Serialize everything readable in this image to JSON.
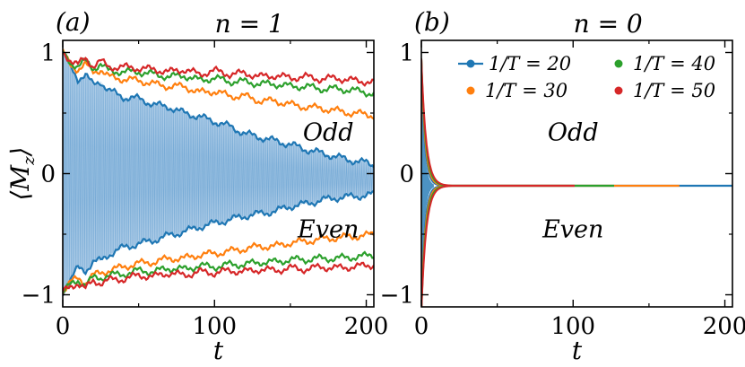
{
  "chart_data": [
    {
      "type": "line",
      "panel_tag": "(a)",
      "title": "n = 1",
      "xlabel": "t",
      "ylabel": "⟨M_z⟩",
      "ylabel_main": "⟨M",
      "ylabel_sub": "z",
      "ylabel_close": "⟩",
      "xlim": [
        0,
        205
      ],
      "ylim": [
        -1.1,
        1.1
      ],
      "xticks": [
        0,
        100,
        200
      ],
      "yticks": [
        1,
        0,
        -1
      ],
      "xtick_labels": [
        "0",
        "100",
        "200"
      ],
      "ytick_labels": [
        "1",
        "0",
        "−1"
      ],
      "annotations": [
        {
          "text": "Odd",
          "x": 175,
          "y": 0.35
        },
        {
          "text": "Even",
          "x": 175,
          "y": -0.45
        }
      ],
      "series": [
        {
          "name": "1/T = 20",
          "color": "#1f77b4",
          "style": "oscillating-envelope",
          "x": [
            0,
            5,
            10,
            15,
            20,
            25,
            30,
            40,
            50,
            60,
            70,
            80,
            90,
            100,
            110,
            120,
            130,
            140,
            150,
            160,
            170,
            180,
            190,
            200,
            205
          ],
          "upper": [
            1.0,
            0.88,
            0.78,
            0.82,
            0.73,
            0.76,
            0.69,
            0.63,
            0.62,
            0.57,
            0.55,
            0.5,
            0.47,
            0.43,
            0.39,
            0.33,
            0.3,
            0.27,
            0.24,
            0.2,
            0.17,
            0.14,
            0.11,
            0.09,
            0.07
          ],
          "lower": [
            -0.98,
            -0.88,
            -0.78,
            -0.8,
            -0.73,
            -0.72,
            -0.67,
            -0.61,
            -0.58,
            -0.55,
            -0.51,
            -0.48,
            -0.44,
            -0.41,
            -0.38,
            -0.35,
            -0.33,
            -0.31,
            -0.27,
            -0.25,
            -0.22,
            -0.2,
            -0.19,
            -0.18,
            -0.17
          ]
        },
        {
          "name": "1/T = 30",
          "color": "#ff7f0e",
          "x": [
            0,
            5,
            10,
            15,
            20,
            25,
            30,
            40,
            50,
            60,
            70,
            80,
            90,
            100,
            110,
            120,
            130,
            140,
            150,
            160,
            170,
            180,
            190,
            200,
            205
          ],
          "upper": [
            1.0,
            0.9,
            0.86,
            0.9,
            0.84,
            0.86,
            0.8,
            0.78,
            0.77,
            0.74,
            0.72,
            0.72,
            0.67,
            0.68,
            0.64,
            0.64,
            0.6,
            0.6,
            0.57,
            0.55,
            0.54,
            0.52,
            0.5,
            0.49,
            0.48
          ],
          "lower": [
            -0.98,
            -0.9,
            -0.86,
            -0.9,
            -0.84,
            -0.82,
            -0.8,
            -0.77,
            -0.74,
            -0.73,
            -0.7,
            -0.7,
            -0.67,
            -0.66,
            -0.64,
            -0.62,
            -0.6,
            -0.6,
            -0.57,
            -0.56,
            -0.54,
            -0.53,
            -0.52,
            -0.51,
            -0.5
          ]
        },
        {
          "name": "1/T = 40",
          "color": "#2ca02c",
          "x": [
            0,
            5,
            10,
            15,
            20,
            25,
            30,
            40,
            50,
            60,
            70,
            80,
            90,
            100,
            110,
            120,
            130,
            140,
            150,
            160,
            170,
            180,
            190,
            200,
            205
          ],
          "upper": [
            1.0,
            0.92,
            0.88,
            0.93,
            0.87,
            0.9,
            0.85,
            0.84,
            0.84,
            0.82,
            0.8,
            0.81,
            0.77,
            0.79,
            0.76,
            0.76,
            0.74,
            0.74,
            0.72,
            0.72,
            0.7,
            0.7,
            0.69,
            0.67,
            0.66
          ],
          "lower": [
            -0.98,
            -0.92,
            -0.88,
            -0.92,
            -0.86,
            -0.86,
            -0.84,
            -0.83,
            -0.8,
            -0.81,
            -0.78,
            -0.79,
            -0.76,
            -0.77,
            -0.75,
            -0.75,
            -0.73,
            -0.73,
            -0.71,
            -0.71,
            -0.7,
            -0.7,
            -0.69,
            -0.68,
            -0.67
          ]
        },
        {
          "name": "1/T = 50",
          "color": "#d62728",
          "x": [
            0,
            5,
            10,
            15,
            20,
            25,
            30,
            40,
            50,
            60,
            70,
            80,
            90,
            100,
            110,
            120,
            130,
            140,
            150,
            160,
            170,
            180,
            190,
            200,
            205
          ],
          "upper": [
            1.0,
            0.94,
            0.9,
            0.95,
            0.89,
            0.93,
            0.88,
            0.88,
            0.87,
            0.86,
            0.84,
            0.86,
            0.82,
            0.85,
            0.82,
            0.83,
            0.8,
            0.81,
            0.79,
            0.8,
            0.78,
            0.79,
            0.77,
            0.76,
            0.75
          ],
          "lower": [
            -0.98,
            -0.94,
            -0.9,
            -0.95,
            -0.89,
            -0.9,
            -0.88,
            -0.87,
            -0.84,
            -0.85,
            -0.82,
            -0.84,
            -0.81,
            -0.82,
            -0.8,
            -0.81,
            -0.79,
            -0.8,
            -0.78,
            -0.79,
            -0.77,
            -0.78,
            -0.77,
            -0.76,
            -0.75
          ]
        }
      ]
    },
    {
      "type": "line",
      "panel_tag": "(b)",
      "title": "n = 0",
      "xlabel": "t",
      "xlim": [
        0,
        205
      ],
      "ylim": [
        -1.1,
        1.1
      ],
      "xticks": [
        0,
        100,
        200
      ],
      "yticks": [
        1,
        0,
        -1
      ],
      "xtick_labels": [
        "0",
        "100",
        "200"
      ],
      "ytick_labels": [
        "1",
        "0",
        "−1"
      ],
      "legend_position": "top-right",
      "annotations": [
        {
          "text": "Odd",
          "x": 100,
          "y": 0.35
        },
        {
          "text": "Even",
          "x": 100,
          "y": -0.45
        }
      ],
      "series": [
        {
          "name": "1/T = 20",
          "legend_label": "1/T = 20",
          "color": "#1f77b4",
          "end_x": 205,
          "final_value": -0.1
        },
        {
          "name": "1/T = 30",
          "legend_label": "1/T = 30",
          "color": "#ff7f0e",
          "end_x": 170,
          "final_value": -0.1
        },
        {
          "name": "1/T = 40",
          "legend_label": "1/T = 40",
          "color": "#2ca02c",
          "end_x": 127,
          "final_value": -0.1
        },
        {
          "name": "1/T = 50",
          "legend_label": "1/T = 50",
          "color": "#d62728",
          "end_x": 101,
          "final_value": -0.1
        }
      ]
    }
  ]
}
